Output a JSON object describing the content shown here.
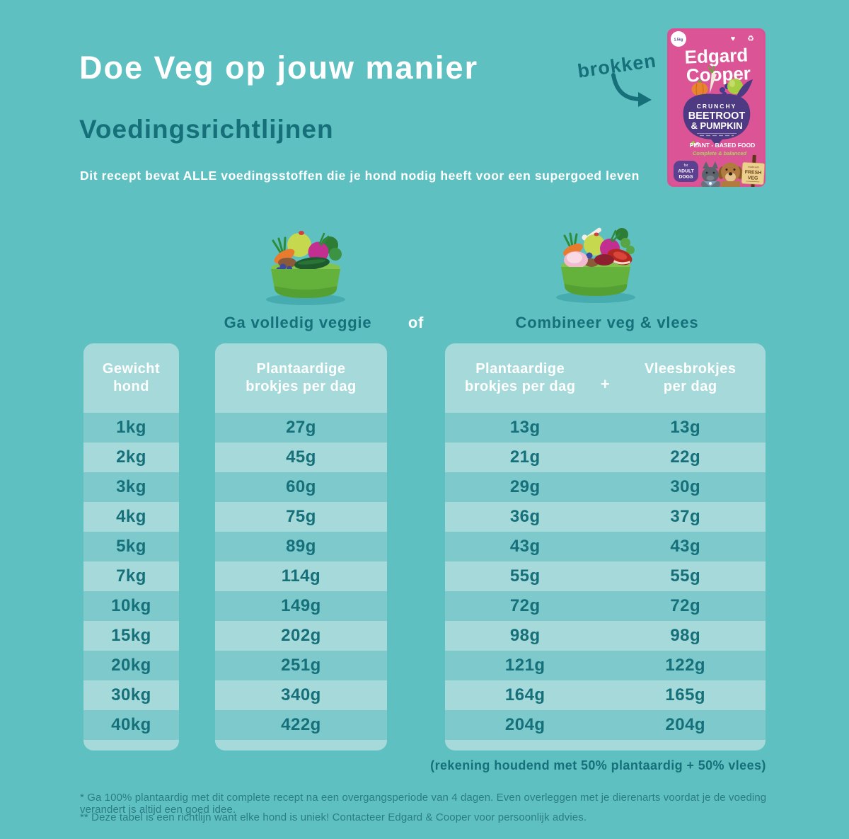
{
  "header": {
    "title": "Doe Veg op jouw manier",
    "subtitle": "Voedingsrichtlijnen",
    "description": "Dit recept bevat ALLE voedingsstoffen die je hond nodig heeft voor een supergoed leven",
    "brokken_label": "brokken"
  },
  "product_bag": {
    "brand_line1": "Edgard",
    "brand_line2": "Cooper",
    "weight_badge": "1.5kg",
    "kicker": "CRUNCHY",
    "flavor_line1": "BEETROOT",
    "flavor_line2": "& PUMPKIN",
    "claim": "PLANT - BASED FOOD",
    "claim_sub": "Complete & balanced",
    "audience_small": "for",
    "audience_line1": "ADULT",
    "audience_line2": "DOGS",
    "sign_small": "made with",
    "sign_line1": "FRESH",
    "sign_line2": "VEG"
  },
  "options": {
    "veggie_label": "Ga volledig veggie",
    "or_label": "of",
    "combo_label": "Combineer veg & vlees"
  },
  "table": {
    "col_weight_header": "Gewicht hond",
    "col_veg_only_header": "Plantaardige brokjes per dag",
    "col_veg_mix_header": "Plantaardige brokjes per dag",
    "plus_sign": "+",
    "col_meat_mix_header": "Vleesbrokjes per dag",
    "rows": [
      {
        "weight": "1kg",
        "veg_only": "27g",
        "veg_mix": "13g",
        "meat_mix": "13g"
      },
      {
        "weight": "2kg",
        "veg_only": "45g",
        "veg_mix": "21g",
        "meat_mix": "22g"
      },
      {
        "weight": "3kg",
        "veg_only": "60g",
        "veg_mix": "29g",
        "meat_mix": "30g"
      },
      {
        "weight": "4kg",
        "veg_only": "75g",
        "veg_mix": "36g",
        "meat_mix": "37g"
      },
      {
        "weight": "5kg",
        "veg_only": "89g",
        "veg_mix": "43g",
        "meat_mix": "43g"
      },
      {
        "weight": "7kg",
        "veg_only": "114g",
        "veg_mix": "55g",
        "meat_mix": "55g"
      },
      {
        "weight": "10kg",
        "veg_only": "149g",
        "veg_mix": "72g",
        "meat_mix": "72g"
      },
      {
        "weight": "15kg",
        "veg_only": "202g",
        "veg_mix": "98g",
        "meat_mix": "98g"
      },
      {
        "weight": "20kg",
        "veg_only": "251g",
        "veg_mix": "121g",
        "meat_mix": "122g"
      },
      {
        "weight": "30kg",
        "veg_only": "340g",
        "veg_mix": "164g",
        "meat_mix": "165g"
      },
      {
        "weight": "40kg",
        "veg_only": "422g",
        "veg_mix": "204g",
        "meat_mix": "204g"
      }
    ],
    "note": "(rekening houdend met 50% plantaardig + 50% vlees)"
  },
  "footnotes": {
    "line1": "* Ga 100% plantaardig met dit complete recept na een overgangsperiode van 4 dagen. Even overleggen met je dierenarts voordat je de voeding verandert is altijd een goed idee.",
    "line2": "** Deze tabel is een richtlijn want elke hond is uniek! Contacteer Edgard & Cooper voor persoonlijk advies."
  },
  "colors": {
    "background": "#5fc0c2",
    "panel": "#a6d9da",
    "row_stripe": "#7dc9cc",
    "dark_teal_text": "#15707a",
    "white_text": "#ffffff",
    "bag_pink": "#db5596",
    "bag_purple": "#4d3a82",
    "claim_green": "#9ccb3f",
    "bowl_green": "#64b13c"
  }
}
